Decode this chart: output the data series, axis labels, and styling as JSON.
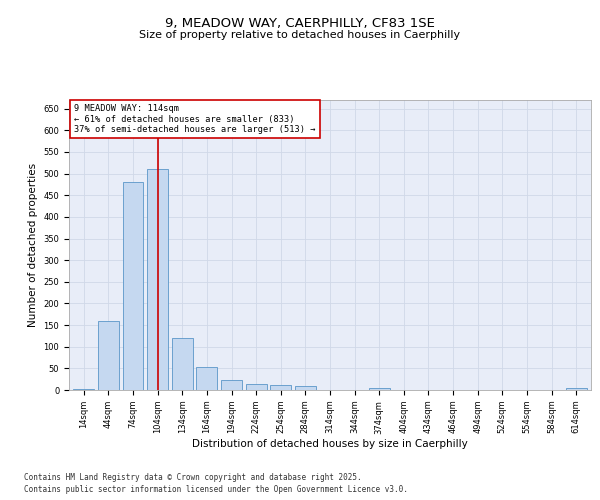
{
  "title_line1": "9, MEADOW WAY, CAERPHILLY, CF83 1SE",
  "title_line2": "Size of property relative to detached houses in Caerphilly",
  "xlabel": "Distribution of detached houses by size in Caerphilly",
  "ylabel": "Number of detached properties",
  "categories": [
    "14sqm",
    "44sqm",
    "74sqm",
    "104sqm",
    "134sqm",
    "164sqm",
    "194sqm",
    "224sqm",
    "254sqm",
    "284sqm",
    "314sqm",
    "344sqm",
    "374sqm",
    "404sqm",
    "434sqm",
    "464sqm",
    "494sqm",
    "524sqm",
    "554sqm",
    "584sqm",
    "614sqm"
  ],
  "values": [
    3,
    160,
    480,
    510,
    120,
    52,
    22,
    13,
    12,
    9,
    0,
    0,
    5,
    0,
    0,
    0,
    0,
    0,
    0,
    0,
    5
  ],
  "bar_color": "#c5d8f0",
  "bar_edge_color": "#5a96c8",
  "red_line_x": 3,
  "annotation_text": "9 MEADOW WAY: 114sqm\n← 61% of detached houses are smaller (833)\n37% of semi-detached houses are larger (513) →",
  "annotation_box_color": "#ffffff",
  "annotation_box_edge_color": "#cc0000",
  "annotation_fontsize": 6.2,
  "ylim": [
    0,
    670
  ],
  "yticks": [
    0,
    50,
    100,
    150,
    200,
    250,
    300,
    350,
    400,
    450,
    500,
    550,
    600,
    650
  ],
  "grid_color": "#d0d8e8",
  "background_color": "#e8edf8",
  "footer_line1": "Contains HM Land Registry data © Crown copyright and database right 2025.",
  "footer_line2": "Contains public sector information licensed under the Open Government Licence v3.0.",
  "footer_fontsize": 5.5,
  "title_fontsize1": 9.5,
  "title_fontsize2": 8.0,
  "xlabel_fontsize": 7.5,
  "ylabel_fontsize": 7.5,
  "tick_fontsize": 6.0
}
